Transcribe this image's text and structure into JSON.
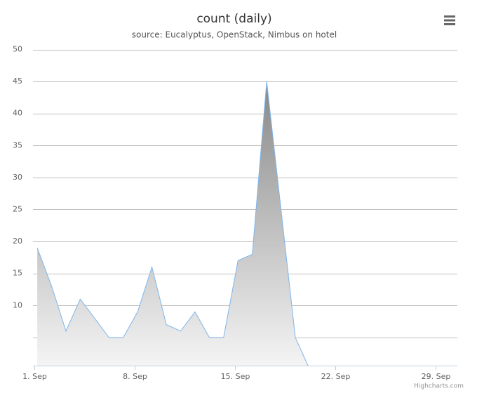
{
  "chart_data": {
    "type": "area",
    "title": "count (daily)",
    "subtitle": "source: Eucalyptus, OpenStack, Nimbus on hotel",
    "x": [
      1.2,
      2.2,
      3.2,
      4.2,
      5.2,
      6.2,
      7.2,
      8.2,
      9.2,
      10.2,
      11.2,
      12.2,
      13.2,
      14.2,
      15.2,
      16.2,
      17.2,
      18.2,
      19.2,
      20.2
    ],
    "values": [
      19,
      13,
      6,
      11,
      8,
      5,
      5,
      9,
      16,
      7,
      6,
      9,
      5,
      5,
      17,
      18,
      45,
      25,
      5,
      0
    ],
    "color": "#7cb5ec",
    "xlim": [
      0.9,
      30.5
    ],
    "xticks": [
      {
        "value": 1,
        "label": "1. Sep"
      },
      {
        "value": 8,
        "label": "8. Sep"
      },
      {
        "value": 15,
        "label": "15. Sep"
      },
      {
        "value": 22,
        "label": "22. Sep"
      },
      {
        "value": 29,
        "label": "29. Sep"
      }
    ],
    "ylim": [
      0.6,
      50
    ],
    "yticks": [
      10,
      15,
      20,
      25,
      30,
      35,
      40,
      45,
      50
    ],
    "ygrid": [
      5,
      10,
      15,
      20,
      25,
      30,
      35,
      40,
      45,
      50
    ],
    "grid": true,
    "credits": "Highcharts.com"
  }
}
